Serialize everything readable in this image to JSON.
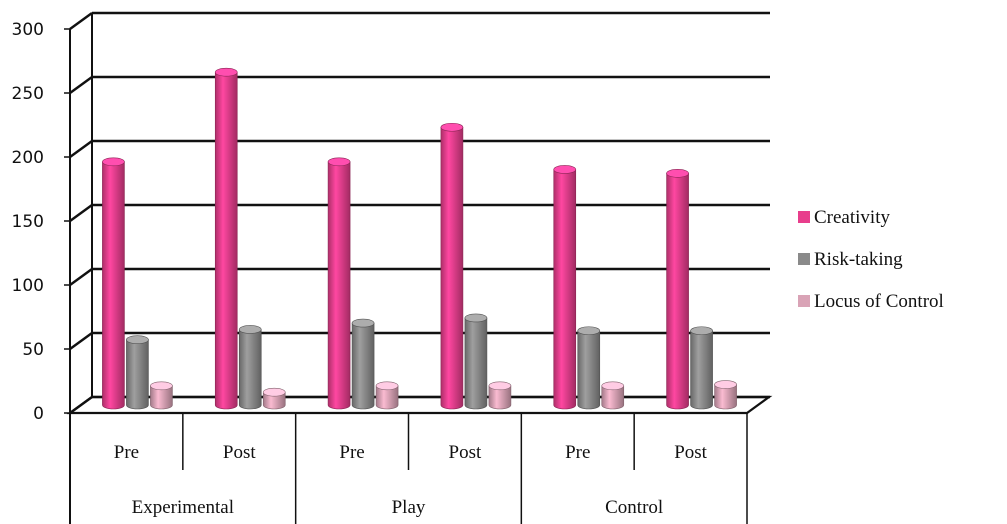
{
  "chart_data": {
    "type": "bar",
    "ylim": [
      0,
      300
    ],
    "yticks": [
      "0",
      "50",
      "100",
      "150",
      "200",
      "250",
      "300"
    ],
    "grid": true,
    "legend_position": "right",
    "groups": [
      "Experimental",
      "Play",
      "Control"
    ],
    "categories": [
      "Pre",
      "Post",
      "Pre",
      "Post",
      "Pre",
      "Post"
    ],
    "series": [
      {
        "name": "Creativity",
        "color": "#e83e8c",
        "values": [
          190,
          260,
          190,
          217,
          184,
          181
        ]
      },
      {
        "name": "Risk-taking",
        "color": "#8a8a8a",
        "values": [
          51,
          59,
          64,
          68,
          58,
          58
        ]
      },
      {
        "name": "Locus of Control",
        "color": "#d9a3b6",
        "values": [
          15,
          10,
          15,
          15,
          15,
          16
        ]
      }
    ]
  }
}
